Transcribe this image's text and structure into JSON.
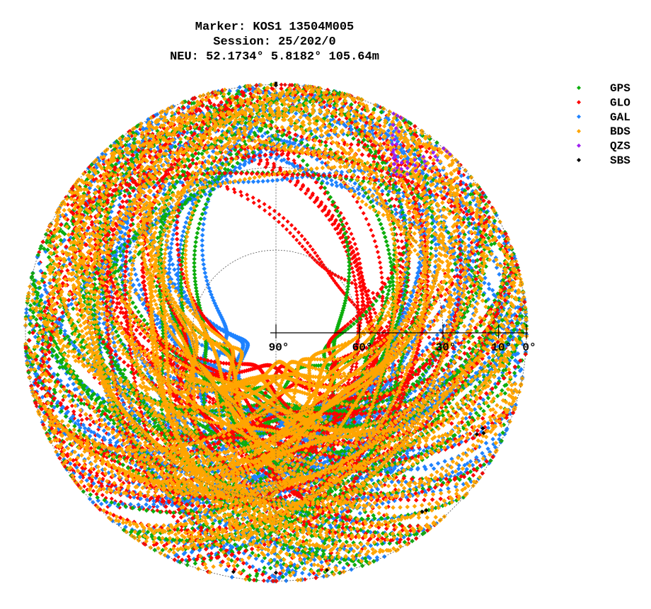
{
  "chart_data": {
    "type": "scatter",
    "subtype": "gnss-skyplot",
    "title_lines": [
      "Marker: KOS1 13504M005",
      "Session: 25/202/0",
      "NEU: 52.1734° 5.8182° 105.64m"
    ],
    "elevation_ticks": [
      {
        "value": 90,
        "label": "90°"
      },
      {
        "value": 60,
        "label": "60°"
      },
      {
        "value": 30,
        "label": "30°"
      },
      {
        "value": 10,
        "label": "10°"
      },
      {
        "value": 0,
        "label": "0°"
      }
    ],
    "elevation_range": [
      0,
      90
    ],
    "azimuth_range": [
      0,
      360
    ],
    "grid": true,
    "legend_position": "top-right",
    "series": [
      {
        "name": "GPS",
        "color": "#0cae0c"
      },
      {
        "name": "GLO",
        "color": "#ff0000"
      },
      {
        "name": "GAL",
        "color": "#1e82ff"
      },
      {
        "name": "BDS",
        "color": "#ffa500"
      },
      {
        "name": "QZS",
        "color": "#a020f0"
      },
      {
        "name": "SBS",
        "color": "#000000"
      }
    ]
  }
}
